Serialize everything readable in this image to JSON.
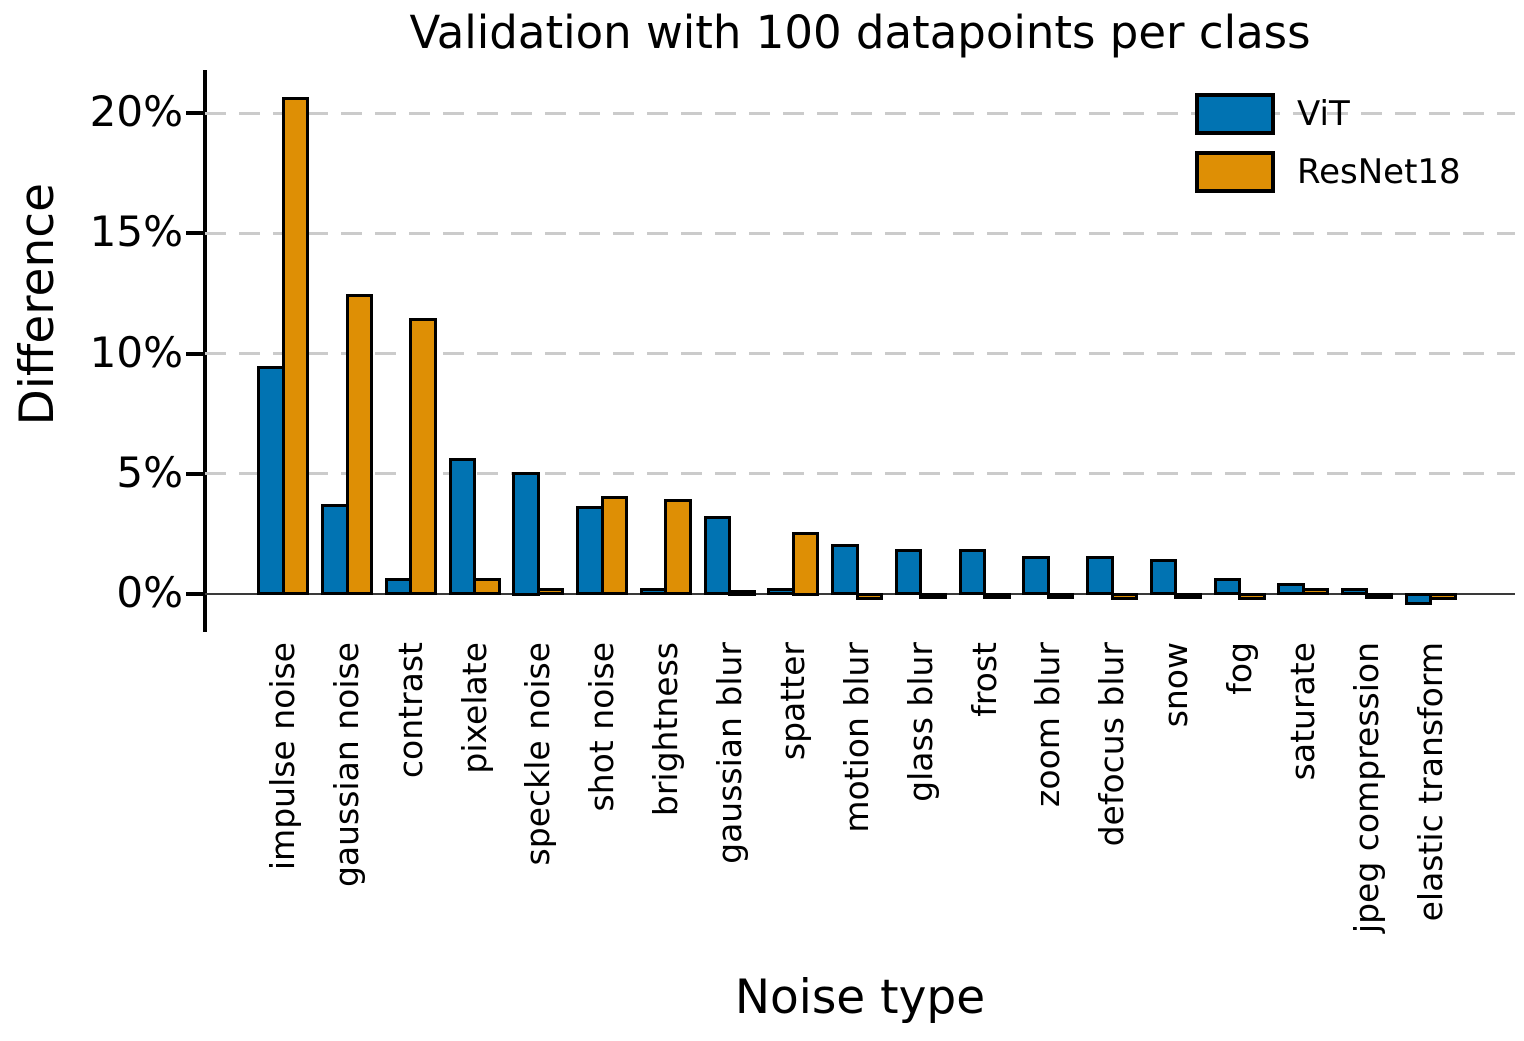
{
  "title": "Validation with 100 datapoints per class",
  "chart_data": {
    "type": "bar",
    "title": "Validation with 100 datapoints per class",
    "xlabel": "Noise type",
    "ylabel": "Difference",
    "grid": "horizontal dashed",
    "legend_position": "upper right",
    "bar_edge_color": "#000000",
    "ylim": [
      -1.4,
      21.8
    ],
    "y_ticks": [
      {
        "value": 0,
        "label": "0%"
      },
      {
        "value": 5,
        "label": "5%"
      },
      {
        "value": 10,
        "label": "10%"
      },
      {
        "value": 15,
        "label": "15%"
      },
      {
        "value": 20,
        "label": "20%"
      }
    ],
    "categories": [
      "impulse noise",
      "gaussian noise",
      "contrast",
      "pixelate",
      "speckle noise",
      "shot noise",
      "brightness",
      "gaussian blur",
      "spatter",
      "motion blur",
      "glass blur",
      "frost",
      "zoom blur",
      "defocus blur",
      "snow",
      "fog",
      "saturate",
      "jpeg compression",
      "elastic transform"
    ],
    "series": [
      {
        "name": "ViT",
        "color": "#0173b2",
        "values": [
          9.4,
          3.7,
          0.6,
          5.6,
          5.0,
          3.6,
          0.2,
          3.2,
          0.2,
          2.0,
          1.8,
          1.8,
          1.5,
          1.5,
          1.4,
          0.6,
          0.4,
          0.2,
          -0.4
        ]
      },
      {
        "name": "ResNet18",
        "color": "#de8f05",
        "values": [
          20.6,
          12.4,
          11.4,
          0.6,
          0.2,
          4.0,
          3.9,
          0.1,
          2.5,
          -0.2,
          -0.1,
          -0.1,
          -0.1,
          -0.2,
          -0.1,
          -0.2,
          0.2,
          -0.1,
          -0.2
        ]
      }
    ]
  }
}
